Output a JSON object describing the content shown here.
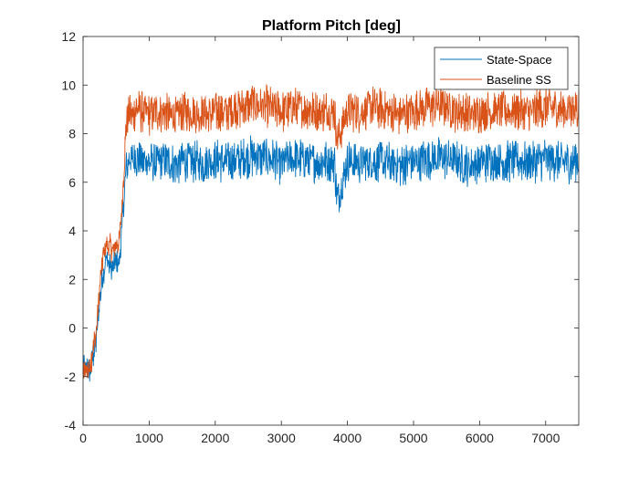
{
  "chart_data": {
    "type": "line",
    "title": "Platform Pitch [deg]",
    "xlabel": "",
    "ylabel": "",
    "xlim": [
      0,
      7500
    ],
    "ylim": [
      -4,
      12
    ],
    "xticks": [
      0,
      1000,
      2000,
      3000,
      4000,
      5000,
      6000,
      7000
    ],
    "yticks": [
      -4,
      -2,
      0,
      2,
      4,
      6,
      8,
      10,
      12
    ],
    "grid": false,
    "legend_position": "top-right",
    "series": [
      {
        "name": "State-Space",
        "color": "#0072BD",
        "x": [
          0,
          100,
          200,
          250,
          300,
          350,
          400,
          450,
          500,
          550,
          600,
          650,
          700,
          750,
          800,
          900,
          1000,
          1200,
          1400,
          1600,
          1800,
          2000,
          2200,
          2400,
          2600,
          2800,
          3000,
          3200,
          3400,
          3600,
          3800,
          3850,
          4000,
          4200,
          4400,
          4600,
          4800,
          5000,
          5200,
          5400,
          5600,
          5800,
          6000,
          6200,
          6400,
          6600,
          6800,
          7000,
          7200,
          7400,
          7500
        ],
        "y": [
          -1.5,
          -1.8,
          -0.5,
          1.2,
          2.2,
          2.9,
          2.6,
          2.4,
          2.7,
          2.8,
          4.5,
          6.5,
          7.0,
          6.9,
          7.0,
          6.9,
          6.8,
          6.9,
          6.7,
          6.9,
          6.8,
          6.9,
          6.8,
          7.0,
          7.1,
          7.0,
          6.8,
          7.0,
          6.9,
          6.8,
          6.9,
          5.2,
          6.9,
          6.8,
          6.9,
          6.8,
          6.7,
          6.8,
          7.0,
          7.0,
          6.9,
          6.7,
          6.8,
          6.9,
          6.8,
          6.9,
          6.8,
          7.0,
          6.9,
          6.8,
          6.9
        ]
      },
      {
        "name": "Baseline SS",
        "color": "#D95319",
        "x": [
          0,
          100,
          200,
          250,
          300,
          350,
          400,
          450,
          500,
          550,
          600,
          650,
          700,
          750,
          800,
          900,
          1000,
          1200,
          1400,
          1600,
          1800,
          2000,
          2200,
          2400,
          2600,
          2800,
          3000,
          3200,
          3400,
          3600,
          3800,
          3850,
          4000,
          4200,
          4400,
          4600,
          4800,
          5000,
          5200,
          5400,
          5600,
          5800,
          6000,
          6200,
          6400,
          6600,
          6800,
          7000,
          7200,
          7400,
          7500
        ],
        "y": [
          -1.8,
          -1.6,
          -0.2,
          1.6,
          2.9,
          3.5,
          3.3,
          3.1,
          3.4,
          3.6,
          5.5,
          8.3,
          8.9,
          8.8,
          9.0,
          8.9,
          8.8,
          8.9,
          8.7,
          8.9,
          8.8,
          8.9,
          8.9,
          9.1,
          9.2,
          9.1,
          8.9,
          9.1,
          9.0,
          8.9,
          9.0,
          7.6,
          9.0,
          8.9,
          9.1,
          8.9,
          8.8,
          8.9,
          9.1,
          9.2,
          9.0,
          8.8,
          8.9,
          9.0,
          8.9,
          9.0,
          8.9,
          9.1,
          9.0,
          8.9,
          9.0
        ]
      }
    ]
  }
}
